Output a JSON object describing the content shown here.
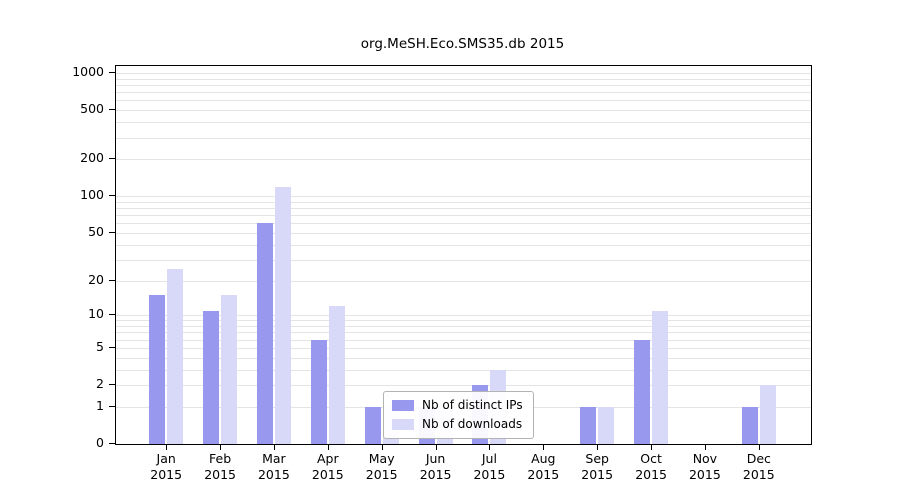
{
  "chart_data": {
    "type": "bar",
    "title": "org.MeSH.Eco.SMS35.db 2015",
    "categories": [
      "Jan 2015",
      "Feb 2015",
      "Mar 2015",
      "Apr 2015",
      "May 2015",
      "Jun 2015",
      "Jul 2015",
      "Aug 2015",
      "Sep 2015",
      "Oct 2015",
      "Nov 2015",
      "Dec 2015"
    ],
    "series": [
      {
        "name": "Nb of distinct IPs",
        "color": "#9899ee",
        "values": [
          15,
          11,
          60,
          6,
          1,
          1,
          2,
          0,
          1,
          6,
          0,
          1
        ]
      },
      {
        "name": "Nb of downloads",
        "color": "#d8d8f8",
        "values": [
          25,
          15,
          120,
          12,
          1,
          1,
          3,
          0,
          1,
          11,
          0,
          2
        ]
      }
    ],
    "y_ticks": [
      0,
      1,
      2,
      5,
      10,
      20,
      50,
      100,
      200,
      500,
      1000
    ],
    "y_scale": "log10(value+1)",
    "ylim": [
      0,
      1000
    ],
    "grid": true,
    "legend_position": "lower center"
  }
}
